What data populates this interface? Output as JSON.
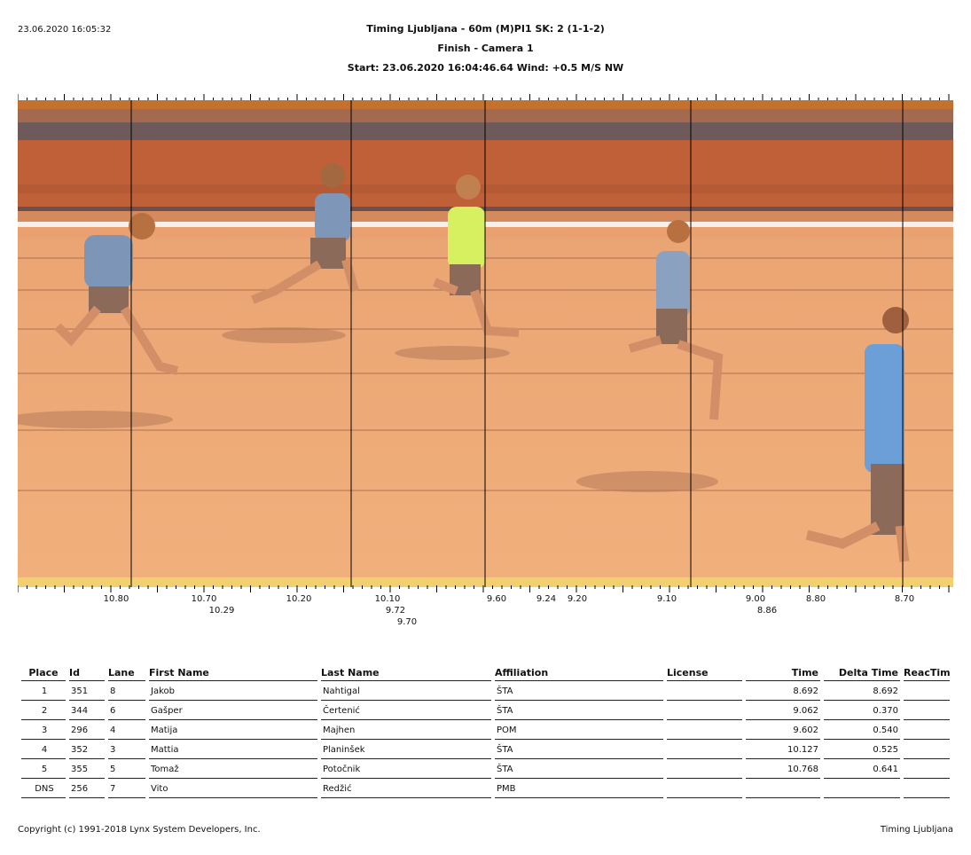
{
  "header": {
    "datetime": "23.06.2020 16:05:32",
    "line1": "Timing Ljubljana - 60m (M)PI1   SK: 2 (1-1-2)",
    "line2": "Finish - Camera 1",
    "line3": "Start: 23.06.2020 16:04:46.64    Wind: +0.5 M/S NW"
  },
  "image": {
    "description_icon": "photo-finish-image",
    "time_labels_row1": [
      "10.80",
      "10.70",
      "10.20",
      "10.10",
      "9.60",
      "9.24",
      "9.20",
      "9.10",
      "9.00",
      "8.80",
      "8.70"
    ],
    "time_labels_row2": [
      "10.29",
      "9.72",
      "8.86"
    ],
    "time_labels_row3": [
      "9.70"
    ]
  },
  "table": {
    "columns": [
      "Place",
      "Id",
      "Lane",
      "First Name",
      "Last Name",
      "Affiliation",
      "License",
      "Time",
      "Delta Time",
      "ReacTim"
    ],
    "rows": [
      [
        "1",
        "351",
        "8",
        "Jakob",
        "Nahtigal",
        "ŠTA",
        "",
        "8.692",
        "8.692",
        ""
      ],
      [
        "2",
        "344",
        "6",
        "Gašper",
        "Čertenić",
        "ŠTA",
        "",
        "9.062",
        "0.370",
        ""
      ],
      [
        "3",
        "296",
        "4",
        "Matija",
        "Majhen",
        "POM",
        "",
        "9.602",
        "0.540",
        ""
      ],
      [
        "4",
        "352",
        "3",
        "Mattia",
        "Planinšek",
        "ŠTA",
        "",
        "10.127",
        "0.525",
        ""
      ],
      [
        "5",
        "355",
        "5",
        "Tomaž",
        "Potočnik",
        "ŠTA",
        "",
        "10.768",
        "0.641",
        ""
      ],
      [
        "DNS",
        "256",
        "7",
        "Vito",
        "Redžić",
        "PMB",
        "",
        "",
        "",
        ""
      ]
    ]
  },
  "footer": {
    "copyright": "Copyright (c) 1991-2018 Lynx System Developers, Inc.",
    "right": "Timing Ljubljana"
  }
}
